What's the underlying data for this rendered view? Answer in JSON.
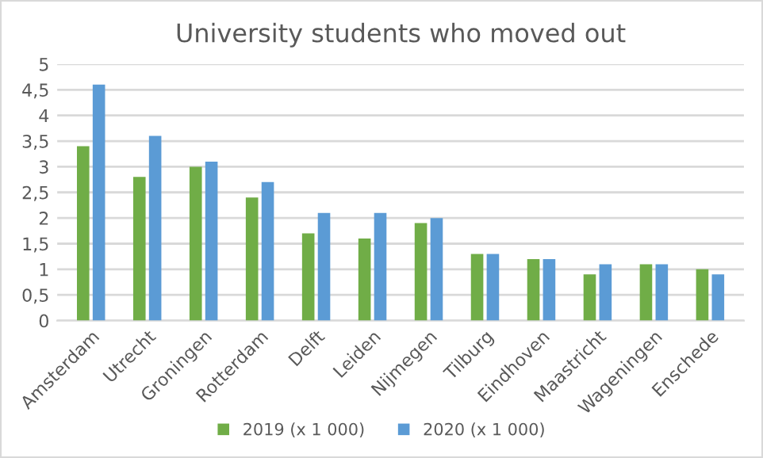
{
  "chart_data": {
    "type": "bar",
    "title": "University students who moved out",
    "categories": [
      "Amsterdam",
      "Utrecht",
      "Groningen",
      "Rotterdam",
      "Delft",
      "Leiden",
      "Nijmegen",
      "Tilburg",
      "Eindhoven",
      "Maastricht",
      "Wageningen",
      "Enschede"
    ],
    "series": [
      {
        "name": "2019 (x 1 000)",
        "color": "#70ad47",
        "values": [
          3.4,
          2.8,
          3.0,
          2.4,
          1.7,
          1.6,
          1.9,
          1.3,
          1.2,
          0.9,
          1.1,
          1.0
        ]
      },
      {
        "name": "2020 (x 1 000)",
        "color": "#5b9bd5",
        "values": [
          4.6,
          3.6,
          3.1,
          2.7,
          2.1,
          2.1,
          2.0,
          1.3,
          1.2,
          1.1,
          1.1,
          0.9
        ]
      }
    ],
    "ylim": [
      0,
      5
    ],
    "yticks": [
      0,
      {
        "value": 0.5,
        "label": "0,5"
      },
      1,
      {
        "value": 1.5,
        "label": "1,5"
      },
      2,
      {
        "value": 2.5,
        "label": "2,5"
      },
      3,
      {
        "value": 3.5,
        "label": "3,5"
      },
      4,
      {
        "value": 4.5,
        "label": "4,5"
      },
      5
    ],
    "grid": "y",
    "legend": "bottom"
  }
}
